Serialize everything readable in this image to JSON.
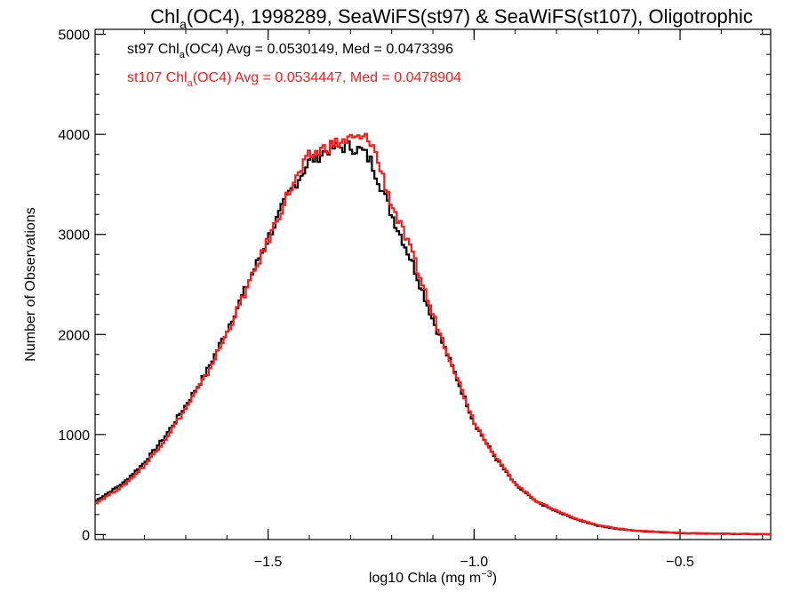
{
  "chart_data": {
    "type": "line",
    "step": true,
    "title": {
      "before": "Chl",
      "sub": "a",
      "after": "(OC4), 1998289, SeaWiFS(st97) & SeaWiFS(st107), Oligotrophic"
    },
    "xlabel": {
      "before": "log10 Chla (mg m",
      "sup": "−3",
      "after": ")"
    },
    "ylabel": "Number of Observations",
    "xlim": [
      -1.92,
      -0.28
    ],
    "ylim": [
      -50,
      5050
    ],
    "x_ticks": [
      {
        "value": -1.5,
        "label": "−1.5"
      },
      {
        "value": -1.0,
        "label": "−1.0"
      },
      {
        "value": -0.5,
        "label": "−0.5"
      }
    ],
    "y_ticks": [
      {
        "value": 0,
        "label": "0"
      },
      {
        "value": 1000,
        "label": "1000"
      },
      {
        "value": 2000,
        "label": "2000"
      },
      {
        "value": 3000,
        "label": "3000"
      },
      {
        "value": 4000,
        "label": "4000"
      },
      {
        "value": 5000,
        "label": "5000"
      }
    ],
    "series": [
      {
        "name": "st97",
        "color": "#000000",
        "legend": {
          "before": "st97 Chl",
          "sub": "a",
          "after": "(OC4) Avg = 0.0530149, Med = 0.0473396"
        },
        "x": [
          -1.92,
          -1.85,
          -1.8,
          -1.75,
          -1.7,
          -1.65,
          -1.6,
          -1.55,
          -1.5,
          -1.45,
          -1.4,
          -1.35,
          -1.3,
          -1.27,
          -1.25,
          -1.22,
          -1.2,
          -1.15,
          -1.1,
          -1.05,
          -1.0,
          -0.95,
          -0.9,
          -0.85,
          -0.8,
          -0.75,
          -0.7,
          -0.65,
          -0.6,
          -0.5,
          -0.4,
          -0.28
        ],
        "y": [
          330,
          520,
          720,
          980,
          1290,
          1620,
          2040,
          2500,
          2960,
          3400,
          3730,
          3860,
          3880,
          3830,
          3730,
          3420,
          3200,
          2720,
          2150,
          1650,
          1120,
          780,
          500,
          330,
          230,
          150,
          90,
          55,
          35,
          15,
          8,
          3
        ]
      },
      {
        "name": "st107",
        "color": "#ff1a1a",
        "legend": {
          "before": "st107 Chl",
          "sub": "a",
          "after": "(OC4) Avg = 0.0534447, Med = 0.0478904"
        },
        "x": [
          -1.92,
          -1.85,
          -1.8,
          -1.75,
          -1.7,
          -1.65,
          -1.6,
          -1.55,
          -1.5,
          -1.45,
          -1.4,
          -1.35,
          -1.3,
          -1.27,
          -1.25,
          -1.22,
          -1.2,
          -1.15,
          -1.1,
          -1.05,
          -1.0,
          -0.95,
          -0.9,
          -0.85,
          -0.8,
          -0.75,
          -0.7,
          -0.65,
          -0.6,
          -0.5,
          -0.4,
          -0.28
        ],
        "y": [
          310,
          490,
          690,
          950,
          1260,
          1590,
          2010,
          2470,
          2940,
          3420,
          3780,
          3890,
          3950,
          3960,
          3940,
          3560,
          3300,
          2800,
          2200,
          1670,
          1130,
          790,
          510,
          340,
          240,
          155,
          95,
          60,
          38,
          16,
          9,
          3
        ]
      }
    ]
  }
}
